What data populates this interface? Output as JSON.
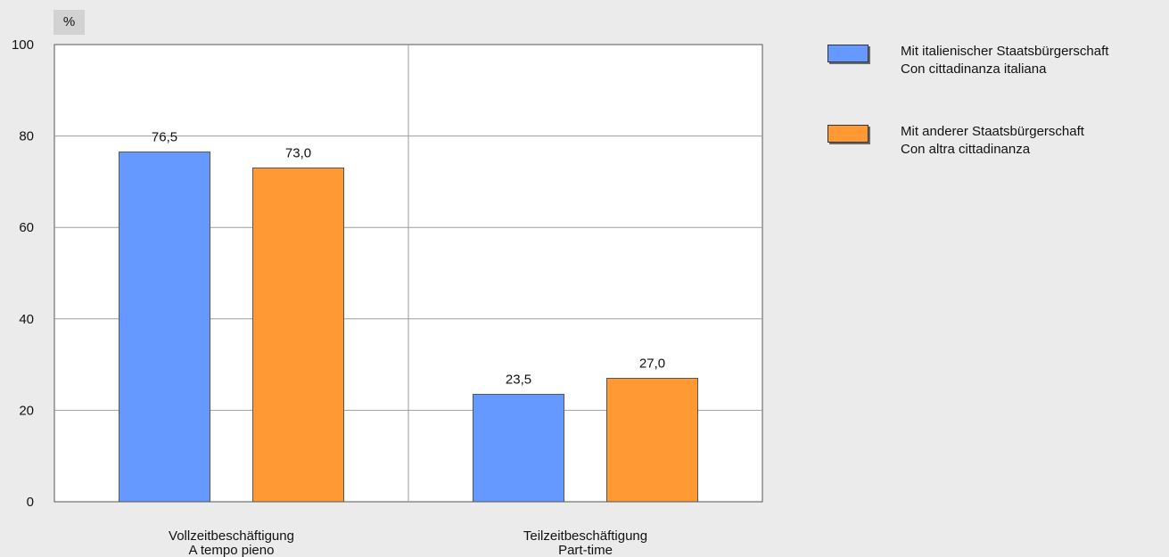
{
  "unit_label": "%",
  "colors": {
    "series_1": "#6699ff",
    "series_2": "#ff9933",
    "plot_bg": "#ffffff",
    "grid": "#9e9e9e"
  },
  "legend": [
    {
      "line1": "Mit italienischer Staatsbürgerschaft",
      "line2": "Con cittadinanza italiana"
    },
    {
      "line1": "Mit anderer Staatsbürgerschaft",
      "line2": "Con altra cittadinanza"
    }
  ],
  "chart_data": {
    "type": "bar",
    "categories": [
      [
        "Vollzeitbeschäftigung",
        "A tempo pieno"
      ],
      [
        "Teilzeitbeschäftigung",
        "Part-time"
      ]
    ],
    "series": [
      {
        "name": "Mit italienischer Staatsbürgerschaft / Con cittadinanza italiana",
        "values": [
          76.5,
          23.5
        ],
        "labels": [
          "76,5",
          "23,5"
        ]
      },
      {
        "name": "Mit anderer Staatsbürgerschaft / Con altra cittadinanza",
        "values": [
          73.0,
          27.0
        ],
        "labels": [
          "73,0",
          "27,0"
        ]
      }
    ],
    "ylim": [
      0,
      100
    ],
    "yticks": [
      0,
      20,
      40,
      60,
      80,
      100
    ],
    "ylabel": "%",
    "grid": true,
    "legend_position": "right"
  }
}
